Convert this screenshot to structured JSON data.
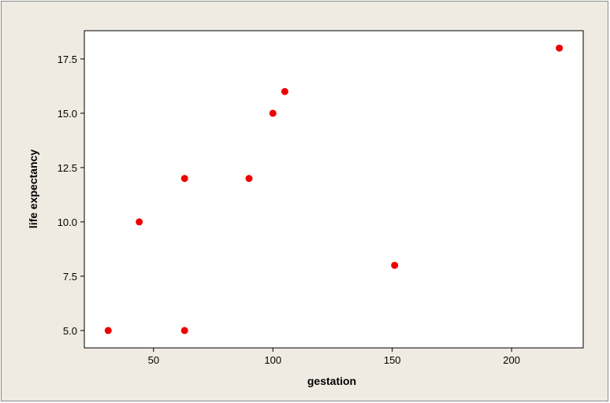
{
  "chart_data": {
    "type": "scatter",
    "title": "",
    "xlabel": "gestation",
    "ylabel": "life expectancy",
    "xlim": [
      21,
      230
    ],
    "ylim": [
      4.2,
      18.8
    ],
    "xticks": [
      50,
      100,
      150,
      200
    ],
    "xtick_labels": [
      "50",
      "100",
      "150",
      "200"
    ],
    "yticks": [
      5.0,
      7.5,
      10.0,
      12.5,
      15.0,
      17.5
    ],
    "ytick_labels": [
      "5.0",
      "7.5",
      "10.0",
      "12.5",
      "15.0",
      "17.5"
    ],
    "grid": false,
    "legend": "none",
    "point_color": "#ee0000",
    "background_color": "#efebe2",
    "plot_background_color": "#ffffff",
    "points": [
      {
        "x": 31,
        "y": 5
      },
      {
        "x": 63,
        "y": 5
      },
      {
        "x": 44,
        "y": 10
      },
      {
        "x": 63,
        "y": 12
      },
      {
        "x": 90,
        "y": 12
      },
      {
        "x": 100,
        "y": 15
      },
      {
        "x": 105,
        "y": 16
      },
      {
        "x": 151,
        "y": 8
      },
      {
        "x": 220,
        "y": 18
      }
    ]
  }
}
